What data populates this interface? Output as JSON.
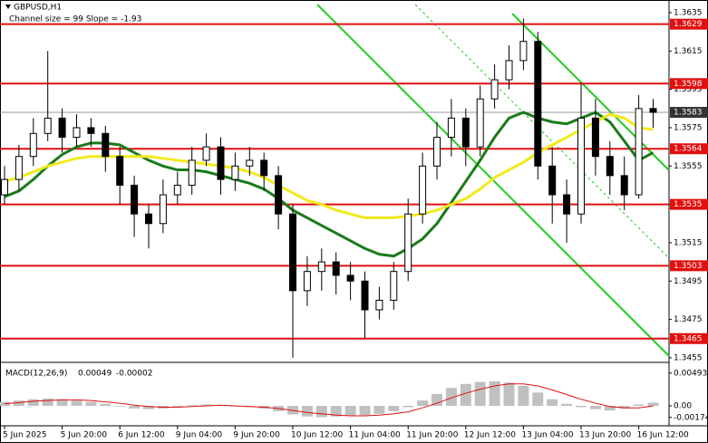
{
  "chart_data": [
    {
      "type": "candlestick",
      "title": "GBPUSD,H1",
      "subtitle": "Channel size = 99 Slope = -1.93",
      "categories": [
        "5 Jun 2025",
        null,
        null,
        null,
        "5 Jun 20:00",
        null,
        null,
        null,
        "6 Jun 12:00",
        null,
        null,
        null,
        "9 Jun 04:00",
        null,
        null,
        null,
        "9 Jun 20:00",
        null,
        null,
        null,
        "10 Jun 12:00",
        null,
        null,
        null,
        "11 Jun 04:00",
        null,
        null,
        null,
        "11 Jun 20:00",
        null,
        null,
        null,
        "12 Jun 12:00",
        null,
        null,
        null,
        "13 Jun 04:00",
        null,
        null,
        null,
        "13 Jun 20:00",
        null,
        null,
        null,
        "16 Jun 12:00",
        null
      ],
      "open": [
        1.354,
        1.3548,
        1.356,
        1.3572,
        1.358,
        1.357,
        1.3575,
        1.3572,
        1.356,
        1.3545,
        1.353,
        1.3525,
        1.354,
        1.3545,
        1.3558,
        1.3565,
        1.3548,
        1.3555,
        1.3558,
        1.355,
        1.353,
        1.349,
        1.35,
        1.3505,
        1.3498,
        1.3495,
        1.348,
        1.3485,
        1.35,
        1.353,
        1.3555,
        1.357,
        1.358,
        1.3565,
        1.359,
        1.36,
        1.361,
        1.362,
        1.3555,
        1.354,
        1.353,
        1.358,
        1.356,
        1.355,
        1.354,
        1.3585
      ],
      "high": [
        1.3555,
        1.3566,
        1.358,
        1.3615,
        1.3585,
        1.3582,
        1.358,
        1.3576,
        1.3565,
        1.355,
        1.3535,
        1.3548,
        1.3552,
        1.3565,
        1.3572,
        1.357,
        1.3562,
        1.3565,
        1.3562,
        1.3555,
        1.3535,
        1.3508,
        1.3512,
        1.351,
        1.3505,
        1.35,
        1.3492,
        1.3505,
        1.3538,
        1.3562,
        1.3578,
        1.359,
        1.3585,
        1.3597,
        1.3608,
        1.3618,
        1.3632,
        1.3625,
        1.3565,
        1.3548,
        1.3598,
        1.359,
        1.3568,
        1.356,
        1.3592,
        1.359
      ],
      "low": [
        1.3535,
        1.3542,
        1.3555,
        1.3568,
        1.3562,
        1.3565,
        1.3565,
        1.3552,
        1.3535,
        1.3518,
        1.3512,
        1.352,
        1.3535,
        1.354,
        1.3555,
        1.354,
        1.3542,
        1.355,
        1.3542,
        1.3522,
        1.3455,
        1.3482,
        1.349,
        1.3488,
        1.3485,
        1.3465,
        1.3475,
        1.348,
        1.3495,
        1.3525,
        1.3548,
        1.356,
        1.3555,
        1.356,
        1.3585,
        1.3595,
        1.3605,
        1.3548,
        1.3525,
        1.3515,
        1.3525,
        1.355,
        1.354,
        1.3532,
        1.3538,
        1.3575
      ],
      "close": [
        1.3548,
        1.356,
        1.3572,
        1.358,
        1.357,
        1.3575,
        1.3572,
        1.356,
        1.3545,
        1.353,
        1.3525,
        1.354,
        1.3545,
        1.3558,
        1.3565,
        1.3548,
        1.3555,
        1.3558,
        1.355,
        1.353,
        1.349,
        1.35,
        1.3505,
        1.3498,
        1.3495,
        1.348,
        1.3485,
        1.35,
        1.353,
        1.3555,
        1.357,
        1.358,
        1.3565,
        1.359,
        1.36,
        1.361,
        1.362,
        1.3555,
        1.354,
        1.353,
        1.358,
        1.356,
        1.355,
        1.354,
        1.3585,
        1.3583
      ],
      "ma_lines": [
        {
          "color": "#1a7a1a",
          "values": [
            1.3539,
            1.3542,
            1.3548,
            1.3555,
            1.3561,
            1.3565,
            1.3567,
            1.3567,
            1.3566,
            1.3562,
            1.3558,
            1.3555,
            1.3553,
            1.3553,
            1.3552,
            1.355,
            1.3548,
            1.3546,
            1.3543,
            1.3538,
            1.3532,
            1.3528,
            1.3524,
            1.352,
            1.3516,
            1.3512,
            1.3509,
            1.3508,
            1.3512,
            1.3517,
            1.3525,
            1.3536,
            1.3547,
            1.3558,
            1.357,
            1.358,
            1.3583,
            1.358,
            1.3578,
            1.3577,
            1.358,
            1.3583,
            1.3578,
            1.3568,
            1.3558,
            1.3562
          ]
        },
        {
          "color": "#f2ea1c",
          "values": [
            1.3547,
            1.3549,
            1.3552,
            1.3555,
            1.3557,
            1.3559,
            1.356,
            1.356,
            1.356,
            1.356,
            1.356,
            1.3559,
            1.3558,
            1.3557,
            1.3556,
            1.3555,
            1.3554,
            1.3552,
            1.3549,
            1.3545,
            1.3541,
            1.3537,
            1.3535,
            1.3532,
            1.353,
            1.3528,
            1.3528,
            1.3528,
            1.3529,
            1.353,
            1.3532,
            1.3535,
            1.3538,
            1.3543,
            1.3549,
            1.3553,
            1.3557,
            1.3562,
            1.3566,
            1.357,
            1.3574,
            1.3578,
            1.3582,
            1.358,
            1.3575,
            1.3574
          ]
        }
      ],
      "levels": [
        1.3629,
        1.3598,
        1.3564,
        1.3535,
        1.3503,
        1.3465
      ],
      "level_color": "#e01010",
      "last_price": 1.3583,
      "ylim": [
        1.34526,
        1.36416
      ],
      "yticks": [
        1.3635,
        1.3615,
        1.3595,
        1.3575,
        1.3555,
        1.3535,
        1.3515,
        1.3495,
        1.3475,
        1.3455
      ]
    },
    {
      "type": "macd",
      "title": "MACD(12,26,9)",
      "histogram": [
        0.0006,
        0.0008,
        0.001,
        0.0011,
        0.001,
        0.0008,
        0.0006,
        0.0003,
        -0.0001,
        -0.0004,
        -0.0005,
        -0.0004,
        -0.0002,
        0.0001,
        0.0002,
        0.0001,
        -0.0001,
        -0.0002,
        -0.0004,
        -0.0008,
        -0.0013,
        -0.0016,
        -0.0017,
        -0.0016,
        -0.0015,
        -0.0014,
        -0.0012,
        -0.0008,
        -0.0002,
        0.0008,
        0.0018,
        0.0027,
        0.0033,
        0.0036,
        0.0037,
        0.0035,
        0.003,
        0.002,
        0.001,
        0.0003,
        -0.0002,
        -0.0005,
        -0.0007,
        -0.0004,
        0.0002,
        0.00049
      ],
      "histogram_color": "#c0c0c0",
      "signal": [
        0.0003,
        0.0005,
        0.0007,
        0.0008,
        0.0009,
        0.0009,
        0.0008,
        0.0006,
        0.0004,
        0.0001,
        -0.0001,
        -0.0002,
        -0.0002,
        -0.0001,
        0,
        0.0001,
        0,
        -0.0001,
        -0.0002,
        -0.0004,
        -0.0007,
        -0.001,
        -0.0012,
        -0.0014,
        -0.0015,
        -0.0015,
        -0.0014,
        -0.0012,
        -0.0009,
        -0.0003,
        0.0004,
        0.0012,
        0.0019,
        0.0025,
        0.003,
        0.0033,
        0.0033,
        0.003,
        0.0024,
        0.0017,
        0.001,
        0.0004,
        -0.0001,
        -0.0003,
        -0.0003,
        -2e-05
      ],
      "signal_color": "#e01010",
      "ylim": [
        -0.003,
        0.006
      ],
      "yticks": [
        0.00493,
        {
          "value": 0,
          "label": "0.00"
        },
        -0.00174
      ]
    }
  ]
}
